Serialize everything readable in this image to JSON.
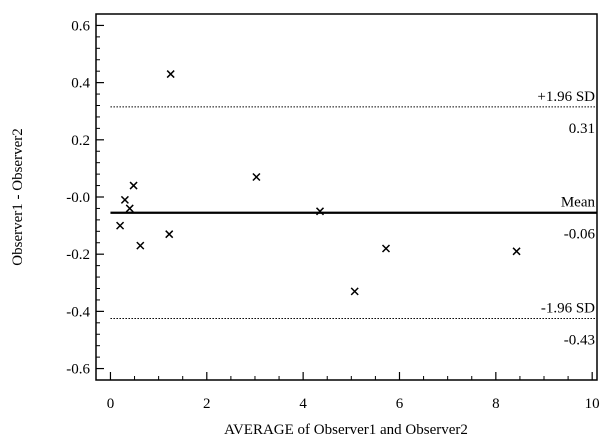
{
  "chart_data": {
    "type": "scatter",
    "title": "",
    "xlabel": "AVERAGE of Observer1 and Observer2",
    "ylabel": "Observer1 - Observer2",
    "xlim": [
      -0.3,
      10.1
    ],
    "ylim": [
      -0.64,
      0.64
    ],
    "xticks": [
      0,
      2,
      4,
      6,
      8,
      10
    ],
    "xtick_labels": [
      "0",
      "2",
      "4",
      "6",
      "8",
      "10"
    ],
    "yticks": [
      -0.6,
      -0.4,
      -0.2,
      0.0,
      0.2,
      0.4,
      0.6
    ],
    "ytick_labels": [
      "-0.6",
      "-0.4",
      "-0.2",
      "-0.0",
      "0.2",
      "0.4",
      "0.6"
    ],
    "marker": "x",
    "grid": false,
    "points": [
      {
        "x": 1.25,
        "y": 0.43
      },
      {
        "x": 3.03,
        "y": 0.07
      },
      {
        "x": 0.48,
        "y": 0.04
      },
      {
        "x": 0.3,
        "y": -0.01
      },
      {
        "x": 0.4,
        "y": -0.04
      },
      {
        "x": 4.35,
        "y": -0.05
      },
      {
        "x": 0.2,
        "y": -0.1
      },
      {
        "x": 1.22,
        "y": -0.13
      },
      {
        "x": 0.62,
        "y": -0.17
      },
      {
        "x": 5.72,
        "y": -0.18
      },
      {
        "x": 8.43,
        "y": -0.19
      },
      {
        "x": 5.07,
        "y": -0.33
      }
    ],
    "reference_lines": [
      {
        "name": "+1.96 SD",
        "value_label": "0.31",
        "y": 0.315,
        "style": "dotted"
      },
      {
        "name": "Mean",
        "value_label": "-0.06",
        "y": -0.055,
        "style": "solid"
      },
      {
        "name": "-1.96 SD",
        "value_label": "-0.43",
        "y": -0.425,
        "style": "dotted"
      }
    ]
  }
}
